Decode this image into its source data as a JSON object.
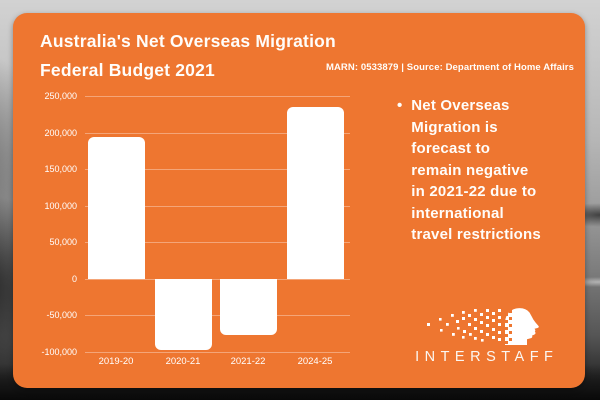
{
  "header": {
    "title_line1": "Australia's Net Overseas Migration",
    "title_line2": "Federal Budget 2021",
    "source_note": "MARN: 0533879 | Source: Department of Home Affairs"
  },
  "insight": {
    "bullet": "•",
    "text": "Net Overseas\nMigration is\nforecast to\nremain negative\nin 2021-22 due to\ninternational\ntravel restrictions"
  },
  "logo": {
    "text": "INTERSTAFF"
  },
  "colors": {
    "card_orange": "#EE7630",
    "text_white": "#FFFDFA",
    "bar_white": "#FFFFFF",
    "gridline": "rgba(255,255,255,0.35)"
  },
  "chart_data": {
    "type": "bar",
    "title": "Australia's Net Overseas Migration — Federal Budget 2021",
    "categories": [
      "2019-20",
      "2020-21",
      "2021-22",
      "2024-25"
    ],
    "values": [
      194000,
      -97000,
      -77000,
      235000
    ],
    "xlabel": "",
    "ylabel": "",
    "ylim": [
      -100000,
      250000
    ],
    "y_tick_values": [
      250000,
      200000,
      150000,
      100000,
      50000,
      0,
      -50000,
      -100000
    ],
    "y_tick_labels": [
      "250,000",
      "200,000",
      "150,000",
      "100,000",
      "50,000",
      "0",
      "-50,000",
      "-100,000"
    ],
    "grid": true,
    "legend": false,
    "bar_color": "#FFFFFF"
  }
}
